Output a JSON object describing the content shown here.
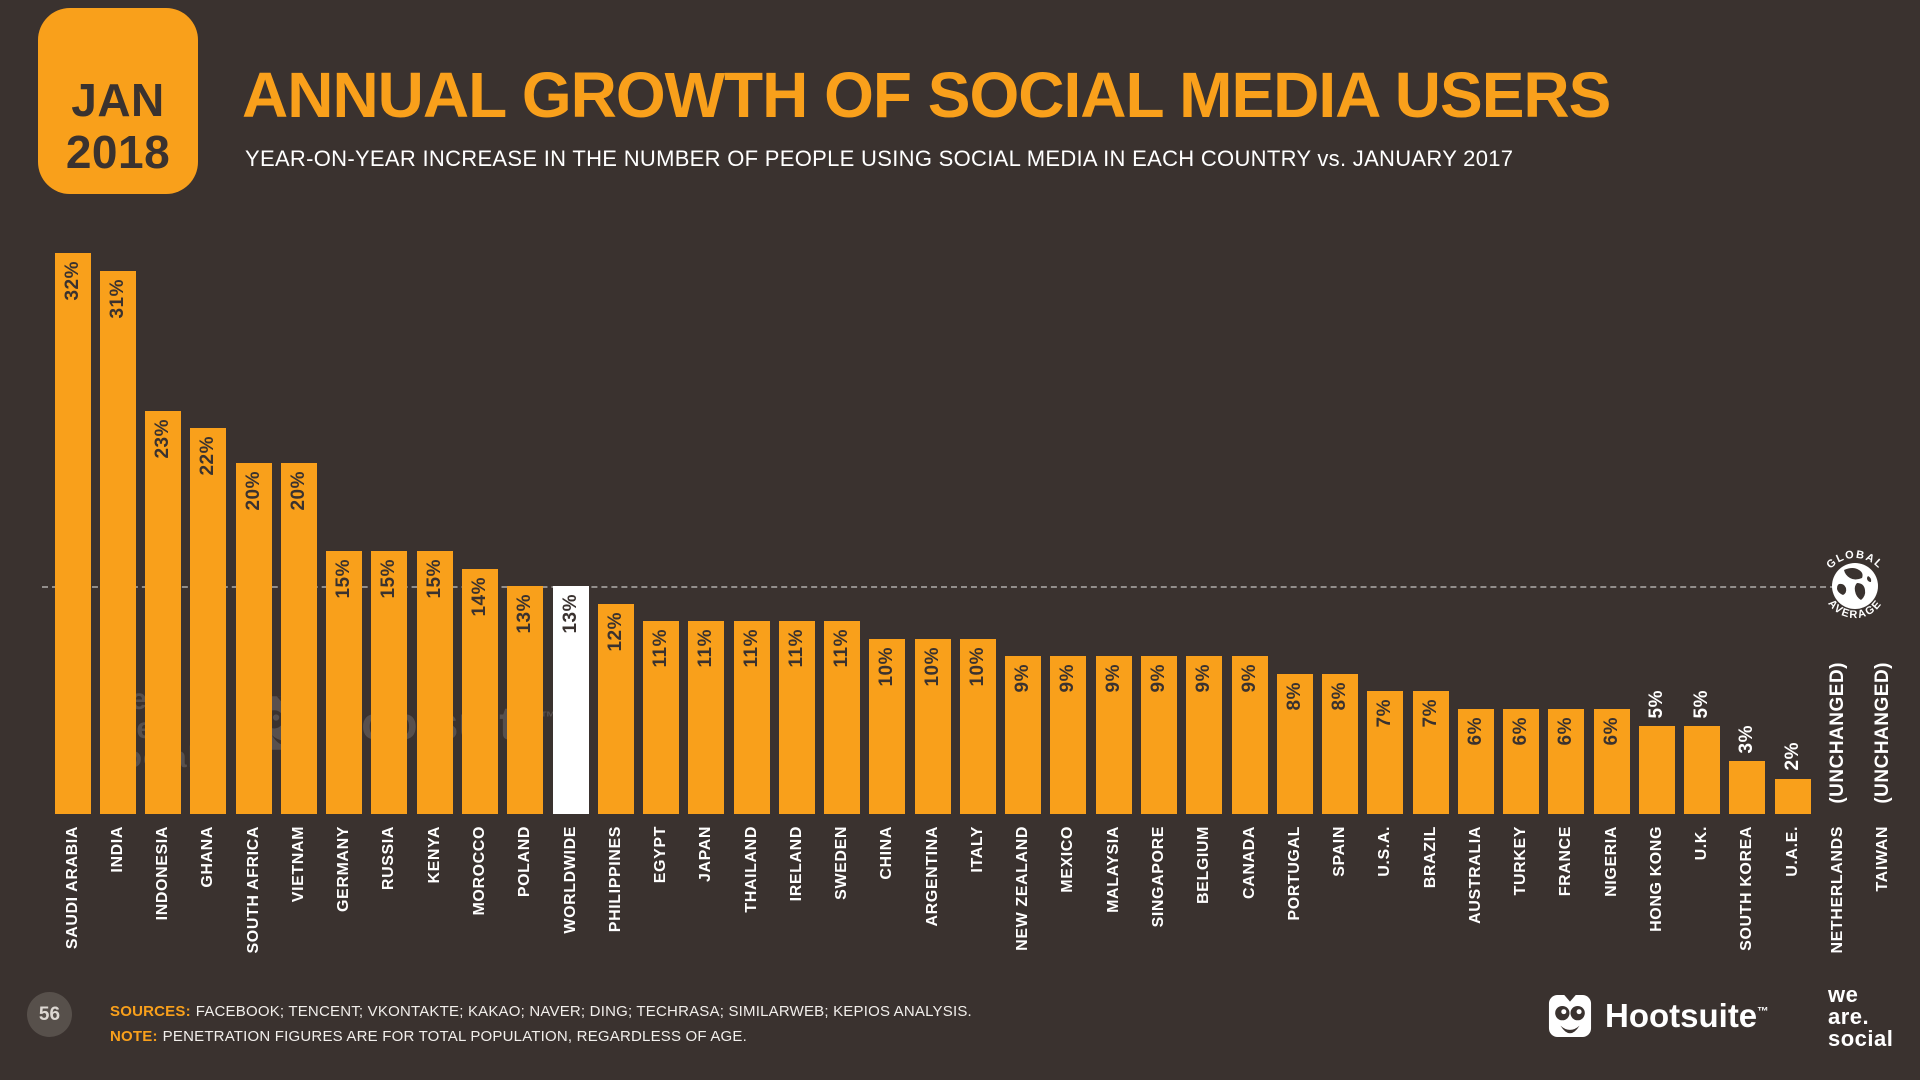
{
  "colors": {
    "background": "#3a322f",
    "accent": "#f9a01b",
    "highlight_bar": "#ffffff"
  },
  "badge": {
    "month": "JAN",
    "year": "2018"
  },
  "header": {
    "title": "ANNUAL GROWTH OF SOCIAL MEDIA USERS",
    "subtitle": "YEAR-ON-YEAR INCREASE IN THE NUMBER OF PEOPLE USING SOCIAL MEDIA IN EACH COUNTRY vs. JANUARY 2017"
  },
  "chart_data": {
    "type": "bar",
    "title": "ANNUAL GROWTH OF SOCIAL MEDIA USERS",
    "xlabel": "",
    "ylabel": "",
    "unit": "%",
    "ylim": [
      0,
      32
    ],
    "grid": false,
    "bar_color": "#f9a01b",
    "highlight": {
      "category": "WORLDWIDE",
      "color": "#ffffff"
    },
    "label_inside_min": 6,
    "reference_line": {
      "value": 13,
      "label_top": "GLOBAL",
      "label_bottom": "AVERAGE"
    },
    "categories": [
      "SAUDI ARABIA",
      "INDIA",
      "INDONESIA",
      "GHANA",
      "SOUTH AFRICA",
      "VIETNAM",
      "GERMANY",
      "RUSSIA",
      "KENYA",
      "MOROCCO",
      "POLAND",
      "WORLDWIDE",
      "PHILIPPINES",
      "EGYPT",
      "JAPAN",
      "THAILAND",
      "IRELAND",
      "SWEDEN",
      "CHINA",
      "ARGENTINA",
      "ITALY",
      "NEW ZEALAND",
      "MEXICO",
      "MALAYSIA",
      "SINGAPORE",
      "BELGIUM",
      "CANADA",
      "PORTUGAL",
      "SPAIN",
      "U.S.A.",
      "BRAZIL",
      "AUSTRALIA",
      "TURKEY",
      "FRANCE",
      "NIGERIA",
      "HONG KONG",
      "U.K.",
      "SOUTH KOREA",
      "U.A.E.",
      "NETHERLANDS",
      "TAIWAN"
    ],
    "values": [
      32,
      31,
      23,
      22,
      20,
      20,
      15,
      15,
      15,
      14,
      13,
      13,
      12,
      11,
      11,
      11,
      11,
      11,
      10,
      10,
      10,
      9,
      9,
      9,
      9,
      9,
      9,
      8,
      8,
      7,
      7,
      6,
      6,
      6,
      6,
      5,
      5,
      3,
      2,
      null,
      null
    ],
    "value_labels": [
      "32%",
      "31%",
      "23%",
      "22%",
      "20%",
      "20%",
      "15%",
      "15%",
      "15%",
      "14%",
      "13%",
      "13%",
      "12%",
      "11%",
      "11%",
      "11%",
      "11%",
      "11%",
      "10%",
      "10%",
      "10%",
      "9%",
      "9%",
      "9%",
      "9%",
      "9%",
      "9%",
      "8%",
      "8%",
      "7%",
      "7%",
      "6%",
      "6%",
      "6%",
      "6%",
      "5%",
      "5%",
      "3%",
      "2%",
      "(UNCHANGED)",
      "(UNCHANGED)"
    ]
  },
  "brand": {
    "hootsuite": "Hootsuite",
    "tm": "™",
    "wearesocial_lines": [
      "we",
      "are.",
      "social"
    ]
  },
  "footer": {
    "page_number": "56",
    "sources_label": "SOURCES:",
    "sources_text": "FACEBOOK; TENCENT; VKONTAKTE; KAKAO; NAVER; DING; TECHRASA; SIMILARWEB; KEPIOS ANALYSIS.",
    "note_label": "NOTE:",
    "note_text": "PENETRATION FIGURES ARE FOR TOTAL POPULATION, REGARDLESS OF AGE."
  }
}
